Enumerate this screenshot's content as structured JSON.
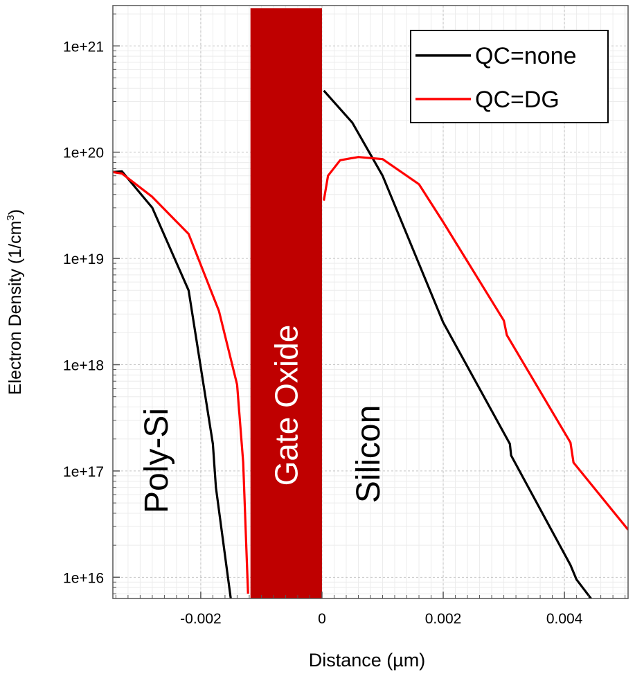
{
  "chart_data": {
    "type": "line",
    "title": "",
    "xlabel": "Distance (µm)",
    "ylabel_main": "Electron Density (1/cm",
    "ylabel_sup": "3",
    "ylabel_close": ")",
    "xlim": [
      -0.00345,
      0.00505
    ],
    "ylim_log10": [
      15.8,
      21.38
    ],
    "yscale": "log",
    "grid": true,
    "legend_position": "top-right",
    "x_ticks": [
      {
        "value": -0.002,
        "label": "-0.002"
      },
      {
        "value": 0,
        "label": "0"
      },
      {
        "value": 0.002,
        "label": "0.002"
      },
      {
        "value": 0.004,
        "label": "0.004"
      }
    ],
    "y_ticks": [
      {
        "exp": 16,
        "label": "1e+16"
      },
      {
        "exp": 17,
        "label": "1e+17"
      },
      {
        "exp": 18,
        "label": "1e+18"
      },
      {
        "exp": 19,
        "label": "1e+19"
      },
      {
        "exp": 20,
        "label": "1e+20"
      },
      {
        "exp": 21,
        "label": "1e+21"
      }
    ],
    "oxide_region": {
      "x_start": -0.00118,
      "x_end": 0.0,
      "label": "Gate Oxide",
      "color": "#bf0000"
    },
    "region_labels": [
      {
        "text": "Poly-Si",
        "x": -0.00255,
        "y": 4e+16
      },
      {
        "text": "Silicon",
        "x": 0.00095,
        "y": 5e+16
      }
    ],
    "series": [
      {
        "name": "QC=none",
        "color": "#000000",
        "points": [
          [
            -0.00345,
            6.5e+19
          ],
          [
            -0.0033,
            6.6e+19
          ],
          [
            -0.0028,
            3e+19
          ],
          [
            -0.0022,
            5e+18
          ],
          [
            -0.0018,
            1.8e+17
          ],
          [
            -0.00175,
            7e+16
          ],
          [
            -0.0015,
            6000000000000000.0
          ],
          [
            -0.00135,
            1800000000000000.0
          ]
        ]
      },
      {
        "name": "QC=none",
        "color": "#000000",
        "points": [
          [
            3e-05,
            3.8e+20
          ],
          [
            0.0005,
            1.9e+20
          ],
          [
            0.001,
            6e+19
          ],
          [
            0.002,
            2.5e+18
          ],
          [
            0.0031,
            1.8e+17
          ],
          [
            0.00312,
            1.4e+17
          ],
          [
            0.0041,
            1.3e+16
          ],
          [
            0.0042,
            9500000000000000.0
          ],
          [
            0.00505,
            2200000000000000.0
          ]
        ]
      },
      {
        "name": "QC=DG",
        "color": "#ff0000",
        "points": [
          [
            -0.00345,
            6.5e+19
          ],
          [
            -0.0033,
            6.3e+19
          ],
          [
            -0.0028,
            3.8e+19
          ],
          [
            -0.0022,
            1.7e+19
          ],
          [
            -0.0017,
            3.2e+18
          ],
          [
            -0.0014,
            6.5e+17
          ],
          [
            -0.0013,
            1.2e+17
          ],
          [
            -0.00125,
            2e+16
          ],
          [
            -0.00122,
            7000000000000000.0
          ]
        ]
      },
      {
        "name": "QC=DG",
        "color": "#ff0000",
        "points": [
          [
            3e-05,
            3.5e+19
          ],
          [
            0.0001,
            6e+19
          ],
          [
            0.0003,
            8.4e+19
          ],
          [
            0.0006,
            9e+19
          ],
          [
            0.001,
            8.6e+19
          ],
          [
            0.0016,
            5e+19
          ],
          [
            0.002,
            2.2e+19
          ],
          [
            0.003,
            2.6e+18
          ],
          [
            0.00305,
            1.9e+18
          ],
          [
            0.0041,
            1.85e+17
          ],
          [
            0.00415,
            1.2e+17
          ],
          [
            0.00505,
            2.8e+16
          ]
        ]
      }
    ],
    "legend": [
      {
        "label": "QC=none",
        "color": "#000000"
      },
      {
        "label": "QC=DG",
        "color": "#ff0000"
      }
    ]
  }
}
